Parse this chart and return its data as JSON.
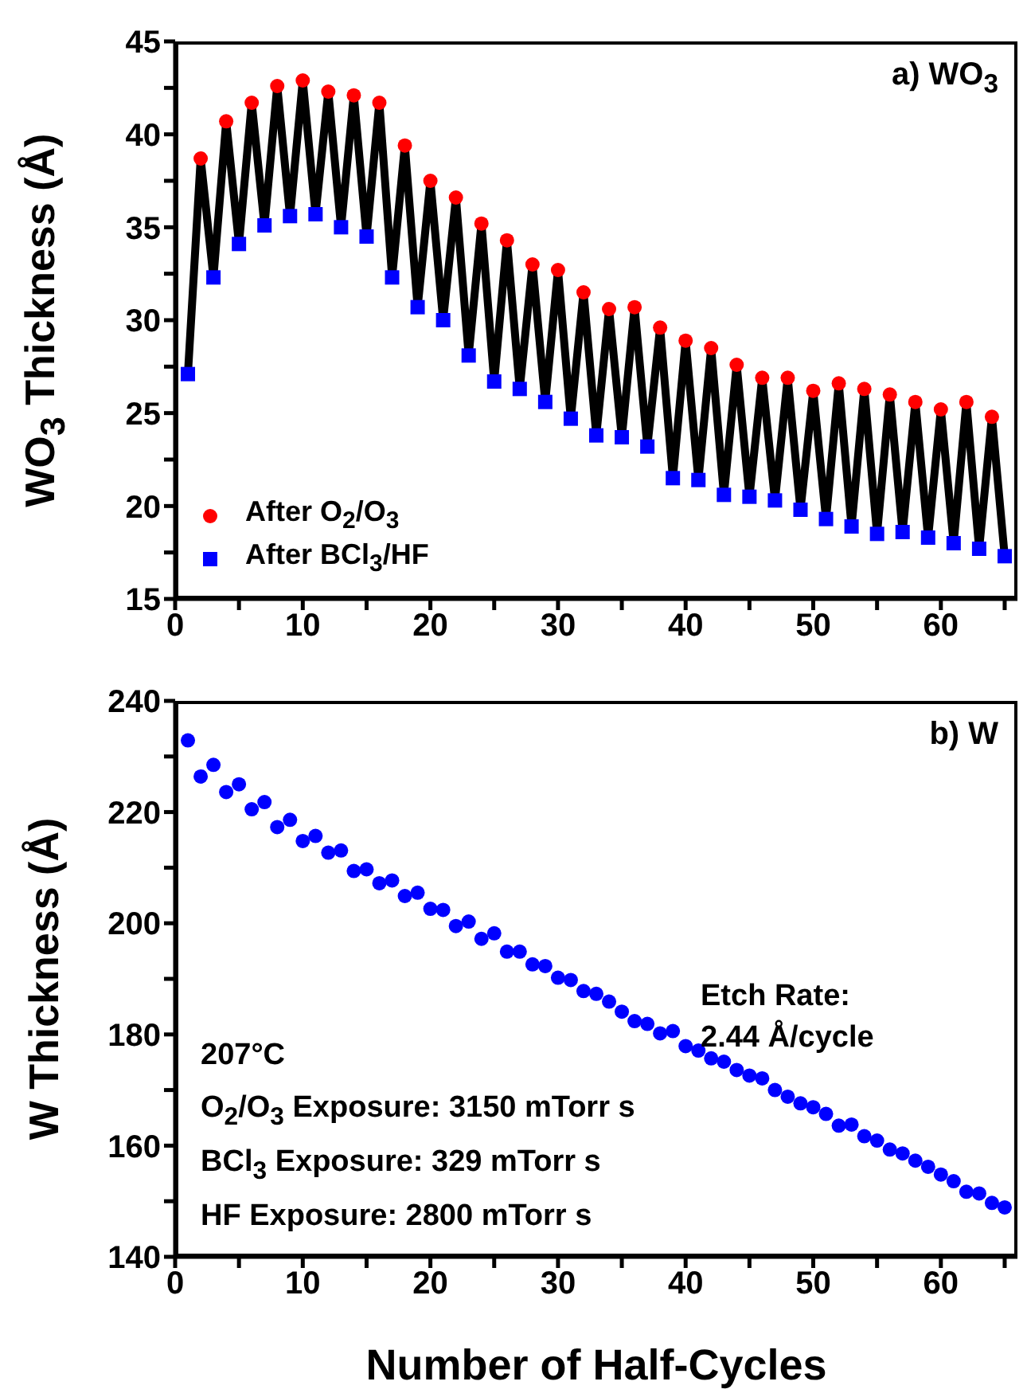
{
  "chart_data": [
    {
      "type": "line",
      "title": "a) WO$_{3}$",
      "ylabel": "WO$_{3}$ Thickness (Å)",
      "xlim": [
        0,
        66
      ],
      "xticks": [
        0,
        {
          "value": 5,
          "label": null
        },
        10,
        {
          "value": 15,
          "label": null
        },
        20,
        {
          "value": 25,
          "label": null
        },
        30,
        {
          "value": 35,
          "label": null
        },
        40,
        {
          "value": 45,
          "label": null
        },
        50,
        {
          "value": 55,
          "label": null
        },
        60,
        {
          "value": 65,
          "label": null
        }
      ],
      "ylim": [
        15,
        45
      ],
      "yticks": [
        15,
        {
          "value": 17.5,
          "label": null
        },
        20,
        {
          "value": 22.5,
          "label": null
        },
        25,
        {
          "value": 27.5,
          "label": null
        },
        30,
        {
          "value": 32.5,
          "label": null
        },
        35,
        {
          "value": 37.5,
          "label": null
        },
        40,
        {
          "value": 42.5,
          "label": null
        },
        45
      ],
      "legend": "bottom left",
      "grid": false,
      "series": [
        {
          "color": "#000000",
          "marker": "none",
          "line_style": "solid",
          "x": [
            1,
            2,
            3,
            4,
            5,
            6,
            7,
            8,
            9,
            10,
            11,
            12,
            13,
            14,
            15,
            16,
            17,
            18,
            19,
            20,
            21,
            22,
            23,
            24,
            25,
            26,
            27,
            28,
            29,
            30,
            31,
            32,
            33,
            34,
            35,
            36,
            37,
            38,
            39,
            40,
            41,
            42,
            43,
            44,
            45,
            46,
            47,
            48,
            49,
            50,
            51,
            52,
            53,
            54,
            55,
            56,
            57,
            58,
            59,
            60,
            61,
            62,
            63,
            64,
            65
          ],
          "values": [
            27.1,
            38.7,
            32.3,
            40.7,
            34.1,
            41.7,
            35.1,
            42.6,
            35.6,
            42.9,
            35.7,
            42.3,
            35.0,
            42.1,
            34.5,
            41.7,
            32.3,
            39.4,
            30.7,
            37.5,
            30.0,
            36.6,
            28.1,
            35.2,
            26.7,
            34.3,
            26.3,
            33.0,
            25.6,
            32.7,
            24.7,
            31.5,
            23.8,
            30.6,
            23.7,
            30.7,
            23.2,
            29.6,
            21.5,
            28.9,
            21.4,
            28.5,
            20.6,
            27.6,
            20.5,
            26.9,
            20.3,
            26.9,
            19.8,
            26.2,
            19.3,
            26.6,
            18.9,
            26.3,
            18.5,
            26.0,
            18.6,
            25.6,
            18.3,
            25.2,
            18.0,
            25.6,
            17.7,
            24.8,
            17.3
          ]
        },
        {
          "type": "scatter",
          "name": "After O$_{2}$/O$_{3}$",
          "color": "#ff0000",
          "marker": "circle",
          "x": [
            2,
            4,
            6,
            8,
            10,
            12,
            14,
            16,
            18,
            20,
            22,
            24,
            26,
            28,
            30,
            32,
            34,
            36,
            38,
            40,
            42,
            44,
            46,
            48,
            50,
            52,
            54,
            56,
            58,
            60,
            62,
            64
          ],
          "values": [
            38.7,
            40.7,
            41.7,
            42.6,
            42.9,
            42.3,
            42.1,
            41.7,
            39.4,
            37.5,
            36.6,
            35.2,
            34.3,
            33.0,
            32.7,
            31.5,
            30.6,
            30.7,
            29.6,
            28.9,
            28.5,
            27.6,
            26.9,
            26.9,
            26.2,
            26.6,
            26.3,
            26.0,
            25.6,
            25.2,
            25.6,
            24.8
          ]
        },
        {
          "type": "scatter",
          "name": "After BCl$_{3}$/HF",
          "color": "#0000ff",
          "marker": "square",
          "x": [
            1,
            3,
            5,
            7,
            9,
            11,
            13,
            15,
            17,
            19,
            21,
            23,
            25,
            27,
            29,
            31,
            33,
            35,
            37,
            39,
            41,
            43,
            45,
            47,
            49,
            51,
            53,
            55,
            57,
            59,
            61,
            63,
            65
          ],
          "values": [
            27.1,
            32.3,
            34.1,
            35.1,
            35.6,
            35.7,
            35.0,
            34.5,
            32.3,
            30.7,
            30.0,
            28.1,
            26.7,
            26.3,
            25.6,
            24.7,
            23.8,
            23.7,
            23.2,
            21.5,
            21.4,
            20.6,
            20.5,
            20.3,
            19.8,
            19.3,
            18.9,
            18.5,
            18.6,
            18.3,
            18.0,
            17.7,
            17.3
          ]
        }
      ]
    },
    {
      "type": "scatter",
      "title": "b) W",
      "ylabel": "W Thickness (Å)",
      "xlabel": "Number of Half-Cycles",
      "xlim": [
        0,
        66
      ],
      "xticks": [
        0,
        {
          "value": 5,
          "label": null
        },
        10,
        {
          "value": 15,
          "label": null
        },
        20,
        {
          "value": 25,
          "label": null
        },
        30,
        {
          "value": 35,
          "label": null
        },
        40,
        {
          "value": 45,
          "label": null
        },
        50,
        {
          "value": 55,
          "label": null
        },
        60,
        {
          "value": 65,
          "label": null
        }
      ],
      "ylim": [
        140,
        240
      ],
      "yticks": [
        140,
        {
          "value": 150,
          "label": null
        },
        160,
        {
          "value": 170,
          "label": null
        },
        180,
        {
          "value": 190,
          "label": null
        },
        200,
        {
          "value": 210,
          "label": null
        },
        220,
        {
          "value": 230,
          "label": null
        },
        240
      ],
      "marker": "circle",
      "grid": false,
      "legend": false,
      "annotations": [
        "Etch Rate:",
        "2.44 Å/cycle",
        "207°C",
        "O$_{2}$/O$_{3}$ Exposure: 3150 mTorr s",
        "BCl$_{3}$ Exposure: 329 mTorr s",
        "HF Exposure: 2800 mTorr s"
      ],
      "series": [
        {
          "color": "#0000ff",
          "x": [
            1,
            2,
            3,
            4,
            5,
            6,
            7,
            8,
            9,
            10,
            11,
            12,
            13,
            14,
            15,
            16,
            17,
            18,
            19,
            20,
            21,
            22,
            23,
            24,
            25,
            26,
            27,
            28,
            29,
            30,
            31,
            32,
            33,
            34,
            35,
            36,
            37,
            38,
            39,
            40,
            41,
            42,
            43,
            44,
            45,
            46,
            47,
            48,
            49,
            50,
            51,
            52,
            53,
            54,
            55,
            56,
            57,
            58,
            59,
            60,
            61,
            62,
            63,
            64,
            65
          ],
          "values": [
            232.9,
            226.4,
            228.5,
            223.6,
            225.0,
            220.5,
            221.8,
            217.3,
            218.6,
            214.8,
            215.7,
            212.7,
            213.1,
            209.4,
            209.7,
            207.2,
            207.7,
            204.9,
            205.5,
            202.6,
            202.4,
            199.5,
            200.3,
            197.2,
            198.2,
            194.9,
            194.9,
            192.6,
            192.3,
            190.2,
            189.8,
            187.8,
            187.3,
            185.9,
            184.1,
            182.4,
            181.9,
            180.2,
            180.6,
            177.9,
            177.1,
            175.7,
            175.1,
            173.6,
            172.6,
            172.1,
            170.0,
            168.8,
            167.6,
            166.9,
            165.7,
            163.6,
            163.8,
            161.7,
            160.9,
            159.3,
            158.6,
            157.3,
            156.2,
            154.8,
            153.6,
            151.7,
            151.4,
            149.7,
            148.9
          ]
        }
      ]
    }
  ]
}
